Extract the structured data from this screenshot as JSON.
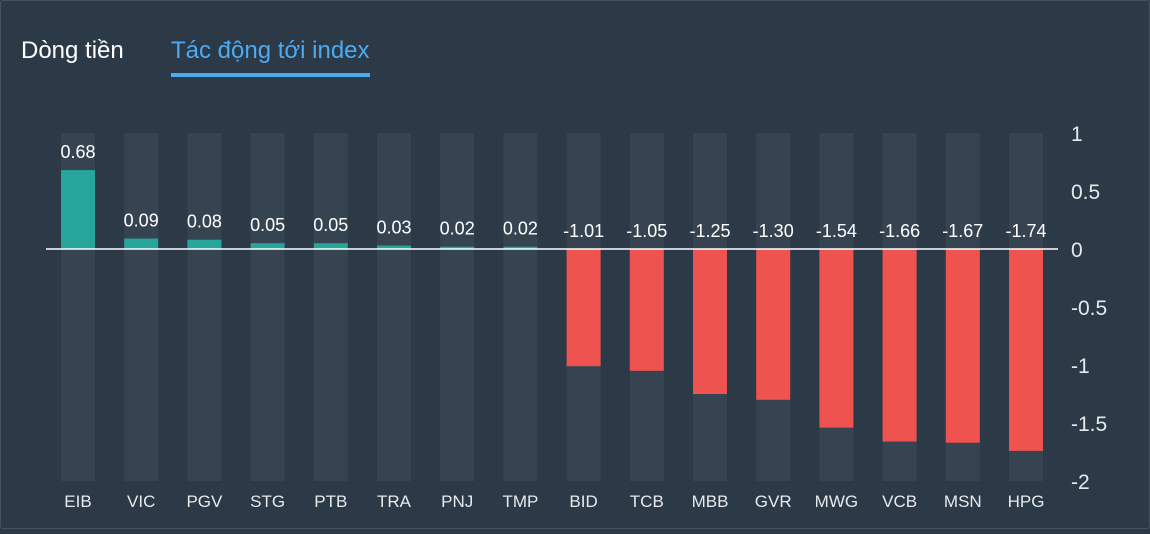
{
  "tabs": [
    {
      "label": "Dòng tiền",
      "active": false
    },
    {
      "label": "Tác động tới index",
      "active": true
    }
  ],
  "colors": {
    "background": "#2c3a48",
    "positive": "#26a69a",
    "negative": "#ef5350",
    "track": "#364452",
    "zero_line": "#ffffff",
    "accent": "#4da9f0",
    "text": "#ffffff",
    "axis_text": "#e6e9ec"
  },
  "chart_data": {
    "type": "bar",
    "title": "",
    "xlabel": "",
    "ylabel": "",
    "ylim": [
      -2,
      1
    ],
    "yticks": [
      "1",
      "0.5",
      "0",
      "-0.5",
      "-1",
      "-1.5",
      "-2"
    ],
    "ytick_values": [
      1,
      0.5,
      0,
      -0.5,
      -1,
      -1.5,
      -2
    ],
    "grid": false,
    "categories": [
      "EIB",
      "VIC",
      "PGV",
      "STG",
      "PTB",
      "TRA",
      "PNJ",
      "TMP",
      "BID",
      "TCB",
      "MBB",
      "GVR",
      "MWG",
      "VCB",
      "MSN",
      "HPG"
    ],
    "values": [
      0.68,
      0.09,
      0.08,
      0.05,
      0.05,
      0.03,
      0.02,
      0.02,
      -1.01,
      -1.05,
      -1.25,
      -1.3,
      -1.54,
      -1.66,
      -1.67,
      -1.74
    ],
    "labels": [
      "0.68",
      "0.09",
      "0.08",
      "0.05",
      "0.05",
      "0.03",
      "0.02",
      "0.02",
      "-1.01",
      "-1.05",
      "-1.25",
      "-1.30",
      "-1.54",
      "-1.66",
      "-1.67",
      "-1.74"
    ]
  }
}
